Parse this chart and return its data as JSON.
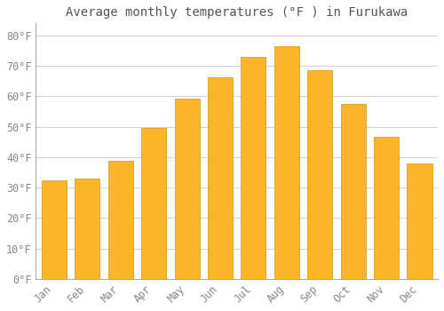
{
  "title": "Average monthly temperatures (°F ) in Furukawa",
  "months": [
    "Jan",
    "Feb",
    "Mar",
    "Apr",
    "May",
    "Jun",
    "Jul",
    "Aug",
    "Sep",
    "Oct",
    "Nov",
    "Dec"
  ],
  "values": [
    32.4,
    33.1,
    38.7,
    49.5,
    59.2,
    66.4,
    73.0,
    76.5,
    68.7,
    57.4,
    46.8,
    37.8
  ],
  "bar_color_top": "#FDB528",
  "bar_color_bottom": "#F5A800",
  "bar_edge_color": "#E09010",
  "background_color": "#ffffff",
  "grid_color": "#d0d0d0",
  "title_color": "#555555",
  "tick_color": "#888888",
  "ylim": [
    0,
    84
  ],
  "yticks": [
    0,
    10,
    20,
    30,
    40,
    50,
    60,
    70,
    80
  ],
  "title_fontsize": 10,
  "tick_fontsize": 8.5,
  "font_family": "monospace",
  "bar_width": 0.75
}
